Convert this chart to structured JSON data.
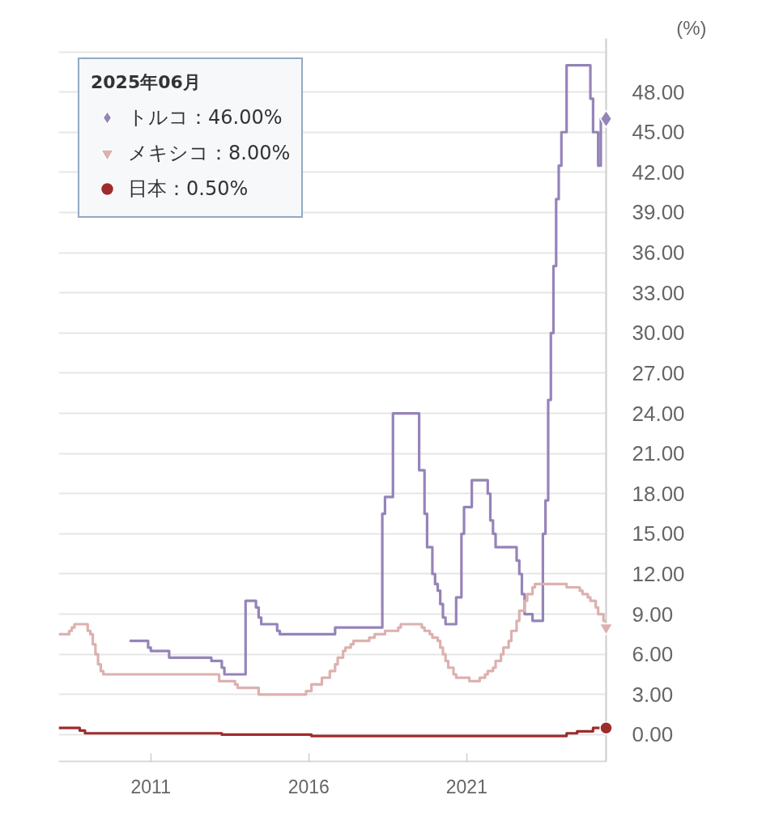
{
  "chart_data": {
    "type": "step",
    "ylabel": "(%)",
    "legend_title": "2025年06月",
    "legend": "top left",
    "grid": "y",
    "xlim": [
      "2008-02",
      "2025-06"
    ],
    "xticks": [
      "2011",
      "2016",
      "2021"
    ],
    "ylim": [
      -2,
      52
    ],
    "yticks": [
      {
        "value": 0,
        "label": "0.00"
      },
      {
        "value": 3,
        "label": "3.00"
      },
      {
        "value": 6,
        "label": "6.00"
      },
      {
        "value": 9,
        "label": "9.00"
      },
      {
        "value": 12,
        "label": "12.00"
      },
      {
        "value": 15,
        "label": "15.00"
      },
      {
        "value": 18,
        "label": "18.00"
      },
      {
        "value": 21,
        "label": "21.00"
      },
      {
        "value": 24,
        "label": "24.00"
      },
      {
        "value": 27,
        "label": "27.00"
      },
      {
        "value": 30,
        "label": "30.00"
      },
      {
        "value": 33,
        "label": "33.00"
      },
      {
        "value": 36,
        "label": "36.00"
      },
      {
        "value": 39,
        "label": "39.00"
      },
      {
        "value": 42,
        "label": "42.00"
      },
      {
        "value": 45,
        "label": "45.00"
      },
      {
        "value": 48,
        "label": "48.00"
      },
      {
        "value": 51,
        "label": null
      }
    ],
    "series": [
      {
        "color": "#9584b8",
        "x": [
          "2010-05",
          "2010-12",
          "2011-01",
          "2011-08",
          "2012-12",
          "2013-04",
          "2013-05",
          "2014-01",
          "2014-05",
          "2014-06",
          "2014-07",
          "2015-01",
          "2015-02",
          "2016-11",
          "2018-05",
          "2018-06",
          "2018-09",
          "2019-07",
          "2019-09",
          "2019-10",
          "2019-12",
          "2020-01",
          "2020-02",
          "2020-03",
          "2020-04",
          "2020-05",
          "2020-09",
          "2020-11",
          "2020-12",
          "2021-03",
          "2021-09",
          "2021-10",
          "2021-11",
          "2021-12",
          "2022-08",
          "2022-09",
          "2022-10",
          "2022-11",
          "2023-02",
          "2023-06",
          "2023-07",
          "2023-08",
          "2023-09",
          "2023-10",
          "2023-11",
          "2023-12",
          "2024-01",
          "2024-03",
          "2024-12",
          "2025-01",
          "2025-03",
          "2025-04",
          "2025-06"
        ],
        "values": [
          7,
          6.5,
          6.25,
          5.75,
          5.5,
          5,
          4.5,
          10,
          9.5,
          8.75,
          8.25,
          7.75,
          7.5,
          8,
          16.5,
          17.75,
          24,
          19.75,
          16.5,
          14,
          12,
          11.25,
          10.75,
          9.75,
          8.75,
          8.25,
          10.25,
          15,
          17,
          19,
          18,
          16,
          15,
          14,
          13,
          12,
          10.5,
          9,
          8.5,
          15,
          17.5,
          25,
          30,
          35,
          40,
          42.5,
          45,
          50,
          47.5,
          45,
          42.5,
          46,
          46
        ]
      },
      {
        "color": "#dcb1af",
        "x": [
          "2008-02",
          "2008-06",
          "2008-07",
          "2008-08",
          "2009-01",
          "2009-02",
          "2009-03",
          "2009-04",
          "2009-05",
          "2009-06",
          "2009-07",
          "2013-03",
          "2013-09",
          "2013-10",
          "2014-06",
          "2015-12",
          "2016-02",
          "2016-06",
          "2016-09",
          "2016-11",
          "2016-12",
          "2017-02",
          "2017-03",
          "2017-05",
          "2017-06",
          "2017-12",
          "2018-02",
          "2018-06",
          "2018-11",
          "2018-12",
          "2019-08",
          "2019-09",
          "2019-11",
          "2019-12",
          "2020-02",
          "2020-03",
          "2020-04",
          "2020-05",
          "2020-06",
          "2020-08",
          "2020-09",
          "2021-02",
          "2021-06",
          "2021-08",
          "2021-09",
          "2021-11",
          "2021-12",
          "2022-02",
          "2022-03",
          "2022-05",
          "2022-06",
          "2022-08",
          "2022-09",
          "2022-11",
          "2022-12",
          "2023-02",
          "2023-03",
          "2024-03",
          "2024-08",
          "2024-09",
          "2024-11",
          "2024-12",
          "2025-02",
          "2025-03",
          "2025-05",
          "2025-06"
        ],
        "values": [
          7.5,
          7.75,
          8,
          8.25,
          7.75,
          7.5,
          6.75,
          6,
          5.25,
          4.75,
          4.5,
          4,
          3.75,
          3.5,
          3,
          3.25,
          3.75,
          4.25,
          4.75,
          5.25,
          5.75,
          6.25,
          6.5,
          6.75,
          7,
          7.25,
          7.5,
          7.75,
          8,
          8.25,
          8,
          7.75,
          7.5,
          7.25,
          7,
          6.5,
          6,
          5.5,
          5,
          4.5,
          4.25,
          4,
          4.25,
          4.5,
          4.75,
          5,
          5.5,
          6,
          6.5,
          7,
          7.75,
          8.5,
          9.25,
          10,
          10.5,
          11,
          11.25,
          11,
          10.75,
          10.5,
          10.25,
          10,
          9.5,
          9,
          8.5,
          8
        ]
      },
      {
        "color": "#9e2c2c",
        "x": [
          "2008-02",
          "2008-10",
          "2008-12",
          "2013-04",
          "2016-02",
          "2024-03",
          "2024-07",
          "2025-01",
          "2025-06"
        ],
        "values": [
          0.5,
          0.3,
          0.1,
          0,
          -0.1,
          0.1,
          0.25,
          0.5,
          0.5
        ]
      },
      {
        "type": "scatter",
        "name": "トルコ：46.00%",
        "color": "#9584b8",
        "marker": "diamond",
        "x": [
          "2025-06"
        ],
        "values": [
          46
        ]
      },
      {
        "type": "scatter",
        "name": "メキシコ：8.00%",
        "color": "#dcb1af",
        "marker": "triangle",
        "x": [
          "2025-06"
        ],
        "values": [
          8
        ]
      },
      {
        "type": "scatter",
        "name": "日本：0.50%",
        "color": "#9e2c2c",
        "marker": "circle",
        "x": [
          "2025-06"
        ],
        "values": [
          0.5
        ]
      }
    ]
  }
}
